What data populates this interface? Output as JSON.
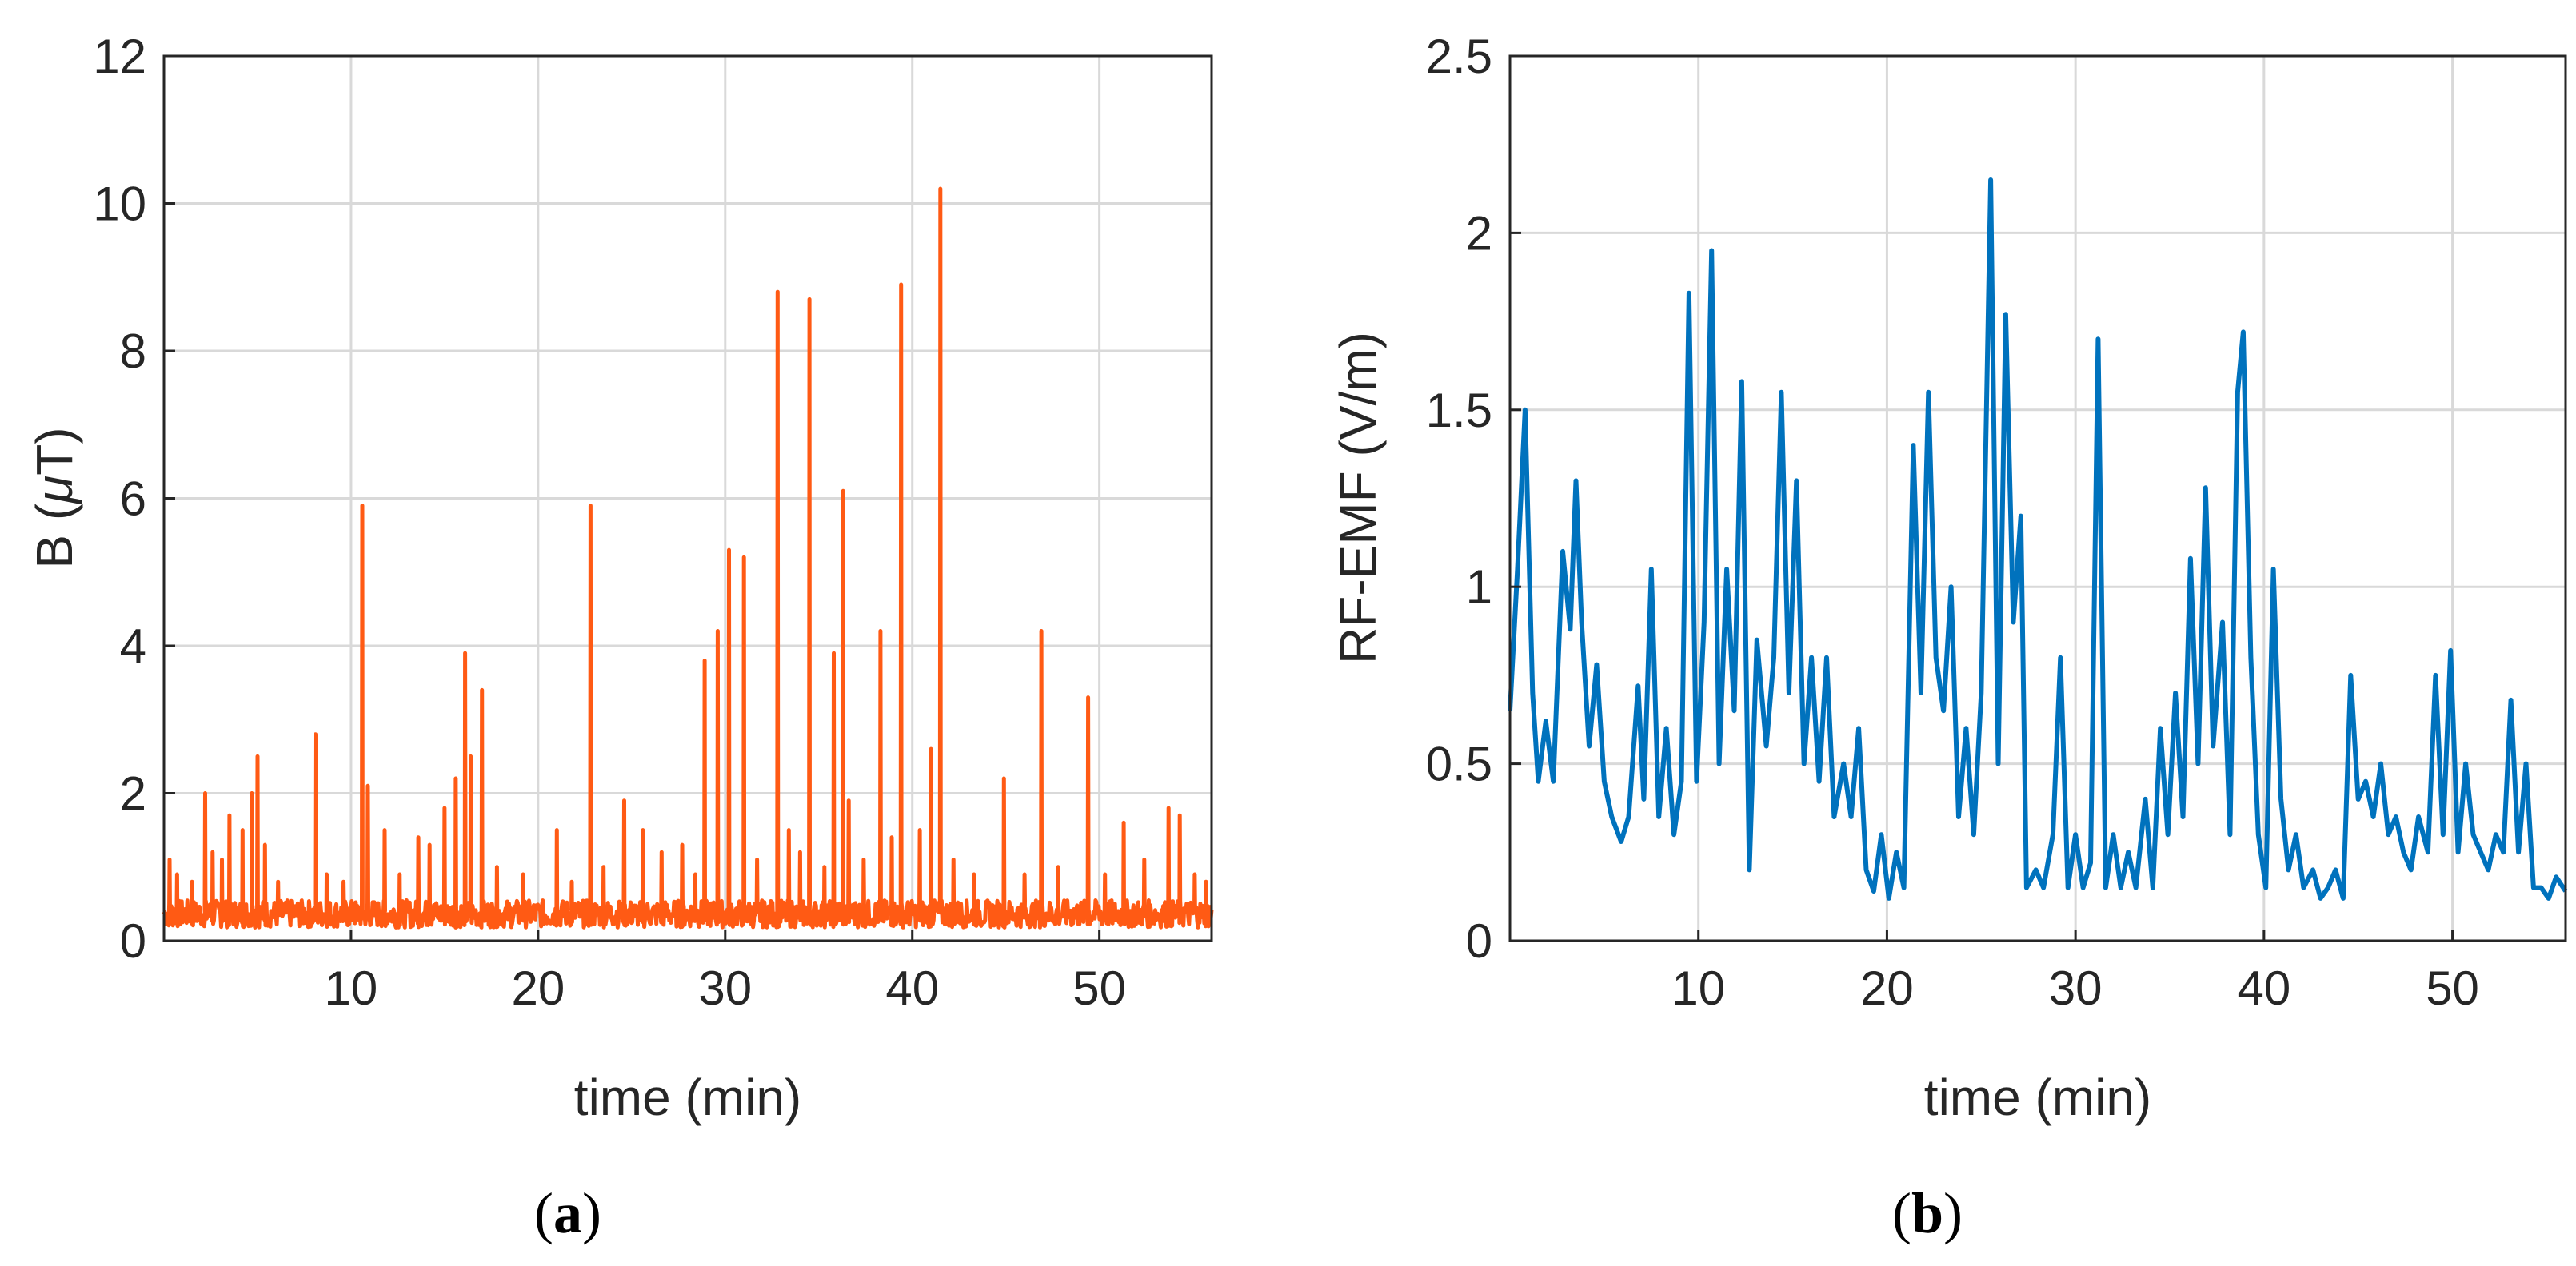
{
  "chart_data": [
    {
      "type": "line",
      "panel_label": "a",
      "xlabel": "time (min)",
      "ylabel": "B (μT)",
      "ylabel_prefix": "B (",
      "ylabel_symbol": "μ",
      "ylabel_suffix": "T)",
      "xlim": [
        0,
        56
      ],
      "ylim": [
        0,
        12
      ],
      "xticks": [
        10,
        20,
        30,
        40,
        50
      ],
      "yticks": [
        0,
        2,
        4,
        6,
        8,
        10,
        12
      ],
      "grid": true,
      "color": "#ff5a14",
      "baseline": [
        0.18,
        0.55
      ],
      "spikes": [
        [
          0.3,
          1.1
        ],
        [
          0.7,
          0.9
        ],
        [
          1.5,
          0.8
        ],
        [
          2.2,
          2.0
        ],
        [
          2.6,
          1.2
        ],
        [
          3.1,
          1.1
        ],
        [
          3.5,
          1.7
        ],
        [
          4.2,
          1.5
        ],
        [
          4.7,
          2.0
        ],
        [
          5.0,
          2.5
        ],
        [
          5.4,
          1.3
        ],
        [
          6.1,
          0.8
        ],
        [
          8.1,
          2.8
        ],
        [
          8.7,
          0.9
        ],
        [
          9.6,
          0.8
        ],
        [
          10.6,
          5.9
        ],
        [
          10.9,
          2.1
        ],
        [
          11.8,
          1.5
        ],
        [
          12.6,
          0.9
        ],
        [
          13.6,
          1.4
        ],
        [
          14.2,
          1.3
        ],
        [
          15.0,
          1.8
        ],
        [
          15.6,
          2.2
        ],
        [
          16.1,
          3.9
        ],
        [
          16.4,
          2.5
        ],
        [
          17.0,
          3.4
        ],
        [
          17.8,
          1.0
        ],
        [
          19.2,
          0.9
        ],
        [
          21.0,
          1.5
        ],
        [
          21.8,
          0.8
        ],
        [
          22.8,
          5.9
        ],
        [
          23.5,
          1.0
        ],
        [
          24.6,
          1.9
        ],
        [
          25.6,
          1.5
        ],
        [
          26.6,
          1.2
        ],
        [
          27.7,
          1.3
        ],
        [
          28.4,
          0.9
        ],
        [
          28.9,
          3.8
        ],
        [
          29.6,
          4.2
        ],
        [
          30.2,
          5.3
        ],
        [
          31.0,
          5.2
        ],
        [
          31.7,
          1.1
        ],
        [
          32.8,
          8.8
        ],
        [
          33.4,
          1.5
        ],
        [
          34.0,
          1.2
        ],
        [
          34.5,
          8.7
        ],
        [
          35.3,
          1.0
        ],
        [
          35.8,
          3.9
        ],
        [
          36.3,
          6.1
        ],
        [
          36.6,
          1.9
        ],
        [
          37.4,
          1.1
        ],
        [
          38.3,
          4.2
        ],
        [
          38.9,
          1.4
        ],
        [
          39.4,
          8.9
        ],
        [
          40.4,
          1.5
        ],
        [
          41.0,
          2.6
        ],
        [
          41.5,
          10.2
        ],
        [
          42.2,
          1.1
        ],
        [
          43.3,
          0.9
        ],
        [
          44.9,
          2.2
        ],
        [
          46.0,
          0.9
        ],
        [
          46.9,
          4.2
        ],
        [
          47.8,
          1.0
        ],
        [
          49.4,
          3.3
        ],
        [
          50.3,
          0.9
        ],
        [
          51.3,
          1.6
        ],
        [
          52.4,
          1.1
        ],
        [
          53.7,
          1.8
        ],
        [
          54.3,
          1.7
        ],
        [
          55.1,
          0.9
        ],
        [
          55.7,
          0.8
        ]
      ]
    },
    {
      "type": "line",
      "panel_label": "b",
      "xlabel": "time (min)",
      "ylabel": "RF-EMF (V/m)",
      "xlim": [
        0,
        56
      ],
      "ylim": [
        0,
        2.5
      ],
      "xticks": [
        10,
        20,
        30,
        40,
        50
      ],
      "yticks": [
        0,
        0.5,
        1,
        1.5,
        2,
        2.5
      ],
      "ytick_labels": [
        "0",
        "0.5",
        "1",
        "1.5",
        "2",
        "2.5"
      ],
      "grid": true,
      "color": "#0072bd",
      "series": [
        [
          0.0,
          0.65
        ],
        [
          0.4,
          1.05
        ],
        [
          0.8,
          1.5
        ],
        [
          1.2,
          0.7
        ],
        [
          1.5,
          0.45
        ],
        [
          1.9,
          0.62
        ],
        [
          2.3,
          0.45
        ],
        [
          2.8,
          1.1
        ],
        [
          3.2,
          0.88
        ],
        [
          3.5,
          1.3
        ],
        [
          3.8,
          0.9
        ],
        [
          4.2,
          0.55
        ],
        [
          4.6,
          0.78
        ],
        [
          5.0,
          0.45
        ],
        [
          5.4,
          0.35
        ],
        [
          5.9,
          0.28
        ],
        [
          6.3,
          0.35
        ],
        [
          6.8,
          0.72
        ],
        [
          7.1,
          0.4
        ],
        [
          7.5,
          1.05
        ],
        [
          7.9,
          0.35
        ],
        [
          8.3,
          0.6
        ],
        [
          8.7,
          0.3
        ],
        [
          9.1,
          0.45
        ],
        [
          9.5,
          1.83
        ],
        [
          9.9,
          0.45
        ],
        [
          10.3,
          0.9
        ],
        [
          10.7,
          1.95
        ],
        [
          11.1,
          0.5
        ],
        [
          11.5,
          1.05
        ],
        [
          11.9,
          0.65
        ],
        [
          12.3,
          1.58
        ],
        [
          12.7,
          0.2
        ],
        [
          13.1,
          0.85
        ],
        [
          13.6,
          0.55
        ],
        [
          14.0,
          0.8
        ],
        [
          14.4,
          1.55
        ],
        [
          14.8,
          0.7
        ],
        [
          15.2,
          1.3
        ],
        [
          15.6,
          0.5
        ],
        [
          16.0,
          0.8
        ],
        [
          16.4,
          0.45
        ],
        [
          16.8,
          0.8
        ],
        [
          17.2,
          0.35
        ],
        [
          17.7,
          0.5
        ],
        [
          18.1,
          0.35
        ],
        [
          18.5,
          0.6
        ],
        [
          18.9,
          0.2
        ],
        [
          19.3,
          0.14
        ],
        [
          19.7,
          0.3
        ],
        [
          20.1,
          0.12
        ],
        [
          20.5,
          0.25
        ],
        [
          20.9,
          0.15
        ],
        [
          21.4,
          1.4
        ],
        [
          21.8,
          0.7
        ],
        [
          22.2,
          1.55
        ],
        [
          22.6,
          0.8
        ],
        [
          23.0,
          0.65
        ],
        [
          23.4,
          1.0
        ],
        [
          23.8,
          0.35
        ],
        [
          24.2,
          0.6
        ],
        [
          24.6,
          0.3
        ],
        [
          25.0,
          0.7
        ],
        [
          25.5,
          2.15
        ],
        [
          25.9,
          0.5
        ],
        [
          26.3,
          1.77
        ],
        [
          26.7,
          0.9
        ],
        [
          27.1,
          1.2
        ],
        [
          27.4,
          0.15
        ],
        [
          27.9,
          0.2
        ],
        [
          28.3,
          0.15
        ],
        [
          28.8,
          0.3
        ],
        [
          29.2,
          0.8
        ],
        [
          29.6,
          0.15
        ],
        [
          30.0,
          0.3
        ],
        [
          30.4,
          0.15
        ],
        [
          30.8,
          0.22
        ],
        [
          31.2,
          1.7
        ],
        [
          31.6,
          0.15
        ],
        [
          32.0,
          0.3
        ],
        [
          32.4,
          0.15
        ],
        [
          32.8,
          0.25
        ],
        [
          33.2,
          0.15
        ],
        [
          33.7,
          0.4
        ],
        [
          34.1,
          0.15
        ],
        [
          34.5,
          0.6
        ],
        [
          34.9,
          0.3
        ],
        [
          35.3,
          0.7
        ],
        [
          35.7,
          0.35
        ],
        [
          36.1,
          1.08
        ],
        [
          36.5,
          0.5
        ],
        [
          36.9,
          1.28
        ],
        [
          37.3,
          0.55
        ],
        [
          37.8,
          0.9
        ],
        [
          38.2,
          0.3
        ],
        [
          38.6,
          1.55
        ],
        [
          38.9,
          1.72
        ],
        [
          39.3,
          0.8
        ],
        [
          39.7,
          0.3
        ],
        [
          40.1,
          0.15
        ],
        [
          40.5,
          1.05
        ],
        [
          40.9,
          0.4
        ],
        [
          41.3,
          0.2
        ],
        [
          41.7,
          0.3
        ],
        [
          42.1,
          0.15
        ],
        [
          42.6,
          0.2
        ],
        [
          43.0,
          0.12
        ],
        [
          43.4,
          0.15
        ],
        [
          43.8,
          0.2
        ],
        [
          44.2,
          0.12
        ],
        [
          44.6,
          0.75
        ],
        [
          45.0,
          0.4
        ],
        [
          45.4,
          0.45
        ],
        [
          45.8,
          0.35
        ],
        [
          46.2,
          0.5
        ],
        [
          46.6,
          0.3
        ],
        [
          47.0,
          0.35
        ],
        [
          47.4,
          0.25
        ],
        [
          47.8,
          0.2
        ],
        [
          48.2,
          0.35
        ],
        [
          48.7,
          0.25
        ],
        [
          49.1,
          0.75
        ],
        [
          49.5,
          0.3
        ],
        [
          49.9,
          0.82
        ],
        [
          50.3,
          0.25
        ],
        [
          50.7,
          0.5
        ],
        [
          51.1,
          0.3
        ],
        [
          51.5,
          0.25
        ],
        [
          51.9,
          0.2
        ],
        [
          52.3,
          0.3
        ],
        [
          52.7,
          0.25
        ],
        [
          53.1,
          0.68
        ],
        [
          53.5,
          0.25
        ],
        [
          53.9,
          0.5
        ],
        [
          54.3,
          0.15
        ],
        [
          54.7,
          0.15
        ],
        [
          55.1,
          0.12
        ],
        [
          55.5,
          0.18
        ],
        [
          56.0,
          0.14
        ]
      ]
    }
  ]
}
